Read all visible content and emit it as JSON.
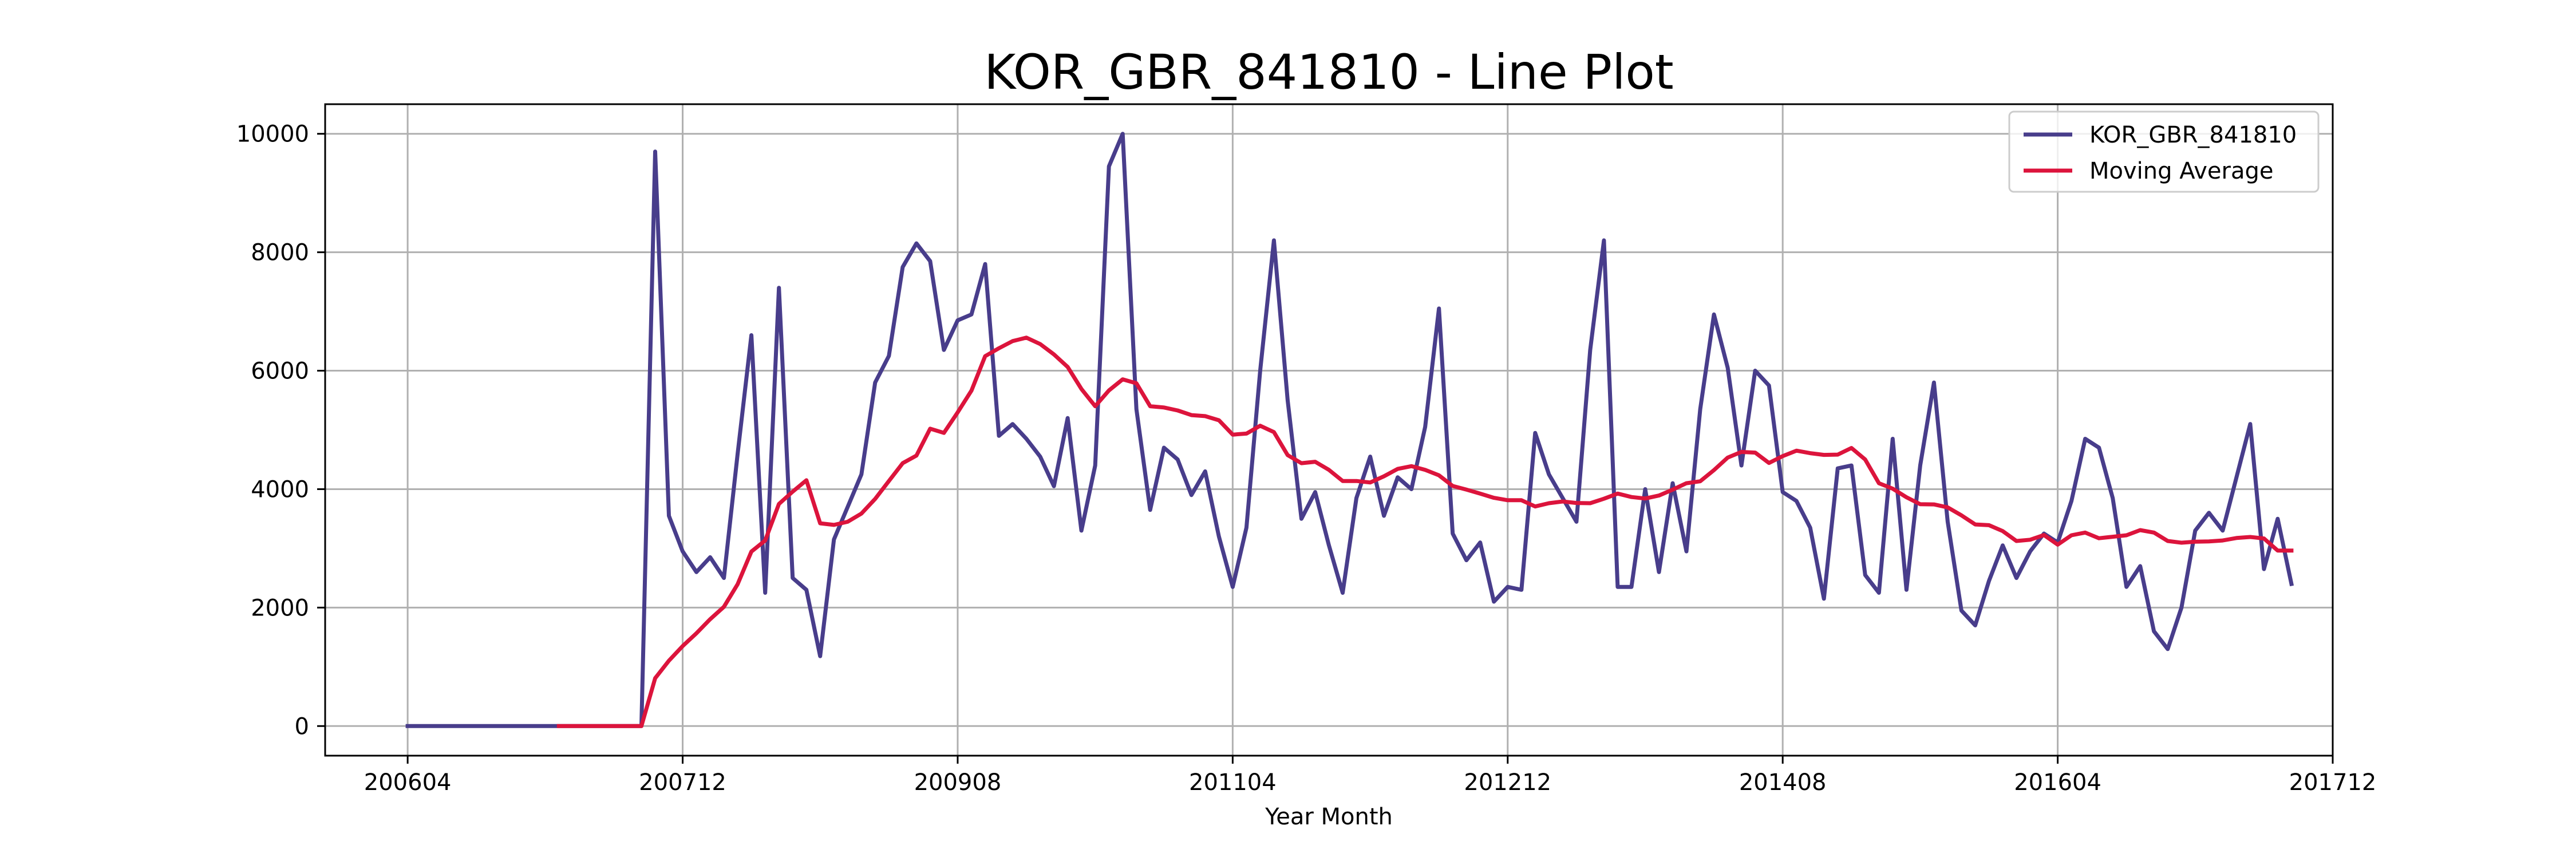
{
  "chart_data": {
    "type": "line",
    "title": "KOR_GBR_841810 - Line Plot",
    "xlabel": "Year Month",
    "ylabel": "",
    "x_tick_labels": [
      "200604",
      "200712",
      "200908",
      "201104",
      "201212",
      "201408",
      "201604",
      "201712"
    ],
    "y_tick_labels": [
      "0",
      "2000",
      "4000",
      "6000",
      "8000",
      "10000"
    ],
    "x_start": "2006-04",
    "xlim": [
      "2005-10",
      "2017-12"
    ],
    "ylim": [
      -500,
      10500
    ],
    "grid": true,
    "legend_position": "top-right",
    "series": [
      {
        "name": "KOR_GBR_841810",
        "color": "#483d8b",
        "values": [
          0,
          0,
          0,
          0,
          0,
          0,
          0,
          0,
          0,
          0,
          0,
          0,
          0,
          0,
          0,
          0,
          0,
          0,
          9700,
          3550,
          2950,
          2600,
          2850,
          2500,
          4600,
          6600,
          2250,
          7400,
          2500,
          2300,
          1180,
          3150,
          3700,
          4250,
          5800,
          6250,
          7750,
          8150,
          7850,
          6350,
          6850,
          6950,
          7800,
          4900,
          5100,
          4850,
          4550,
          4050,
          5200,
          3300,
          4400,
          9450,
          10000,
          5350,
          3650,
          4700,
          4500,
          3900,
          4300,
          3200,
          2350,
          3350,
          6000,
          8200,
          5500,
          3500,
          3950,
          3050,
          2250,
          3850,
          4550,
          3550,
          4200,
          4000,
          5050,
          7050,
          3250,
          2800,
          3100,
          2100,
          2350,
          2300,
          4950,
          4250,
          3850,
          3450,
          6350,
          8200,
          2350,
          2350,
          4000,
          2600,
          4100,
          2950,
          5350,
          6950,
          6050,
          4400,
          6000,
          5750,
          3950,
          3800,
          3350,
          2150,
          4350,
          4400,
          2550,
          2250,
          4850,
          2300,
          4400,
          5800,
          3450,
          1950,
          1700,
          2450,
          3050,
          2500,
          2950,
          3250,
          3100,
          3800,
          4850,
          4700,
          3850,
          2350,
          2700,
          1600,
          1300,
          2000,
          3300,
          3600,
          3300,
          4200,
          5100,
          2650,
          3500,
          2400
        ]
      },
      {
        "name": "Moving Average",
        "color": "#dc143c",
        "values": [
          null,
          null,
          null,
          null,
          null,
          null,
          null,
          null,
          null,
          null,
          null,
          0,
          0,
          0,
          0,
          0,
          0,
          0,
          808,
          1104,
          1350,
          1567,
          1804,
          2013,
          2396,
          2946,
          3133,
          3750,
          3958,
          4150,
          3423,
          3396,
          3450,
          3588,
          3835,
          4138,
          4438,
          4567,
          5021,
          4950,
          5296,
          5663,
          6246,
          6379,
          6500,
          6558,
          6450,
          6275,
          6063,
          5692,
          5400,
          5667,
          5854,
          5788,
          5400,
          5379,
          5329,
          5250,
          5233,
          5163,
          4921,
          4938,
          5071,
          4963,
          4575,
          4438,
          4463,
          4325,
          4138,
          4138,
          4113,
          4217,
          4342,
          4388,
          4325,
          4233,
          4054,
          3992,
          3925,
          3854,
          3813,
          3813,
          3708,
          3763,
          3792,
          3767,
          3763,
          3838,
          3925,
          3867,
          3842,
          3892,
          3992,
          4100,
          4133,
          4321,
          4533,
          4629,
          4617,
          4442,
          4558,
          4650,
          4608,
          4579,
          4583,
          4696,
          4500,
          4100,
          4008,
          3863,
          3746,
          3742,
          3692,
          3558,
          3404,
          3392,
          3292,
          3125,
          3146,
          3225,
          3063,
          3221,
          3267,
          3171,
          3196,
          3221,
          3308,
          3267,
          3125,
          3096,
          3113,
          3117,
          3133,
          3175,
          3192,
          3167,
          2963,
          2963
        ]
      }
    ]
  }
}
